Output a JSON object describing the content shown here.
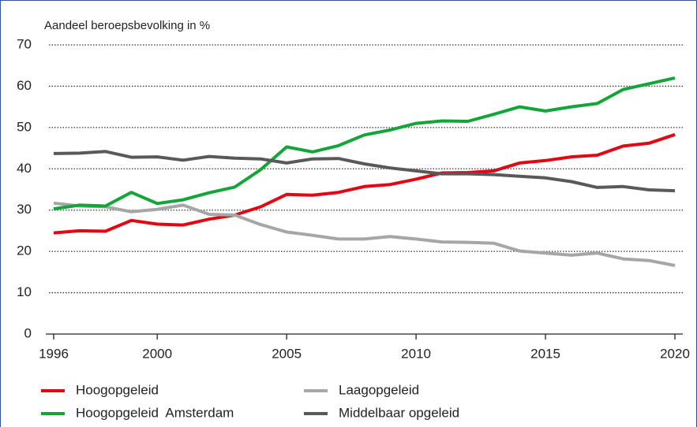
{
  "chart_data": {
    "type": "line",
    "y_label": "Aandeel beroepsbevolking in %",
    "x": [
      1996,
      1997,
      1998,
      1999,
      2000,
      2001,
      2002,
      2003,
      2004,
      2005,
      2006,
      2007,
      2008,
      2009,
      2010,
      2011,
      2012,
      2013,
      2014,
      2015,
      2016,
      2017,
      2018,
      2019,
      2020
    ],
    "series": [
      {
        "name": "Hoogopgeleid",
        "color": "#e30613",
        "values": [
          24.5,
          25,
          24.9,
          27.5,
          26.6,
          26.4,
          27.8,
          28.8,
          30.8,
          33.8,
          33.6,
          34.3,
          35.7,
          36.2,
          37.5,
          39,
          39.1,
          39.5,
          41.4,
          42,
          42.9,
          43.3,
          45.5,
          46.2,
          48.3
        ]
      },
      {
        "name": "Laagopgeleid",
        "color": "#a6a6a6",
        "values": [
          31.7,
          31,
          30.8,
          29.6,
          30.2,
          31.2,
          29,
          28.8,
          26.5,
          24.7,
          23.9,
          23,
          23,
          23.6,
          23,
          22.3,
          22.2,
          22,
          20.1,
          19.6,
          19.1,
          19.6,
          18.2,
          17.8,
          16.6
        ]
      },
      {
        "name": "Hoogopgeleid  Amsterdam",
        "color": "#13a538",
        "values": [
          30.3,
          31.2,
          31,
          34.3,
          31.6,
          32.5,
          34.2,
          35.6,
          39.8,
          45.3,
          44.1,
          45.6,
          48.2,
          49.4,
          51,
          51.6,
          51.5,
          53.2,
          55,
          54,
          55,
          55.8,
          59.2,
          60.6,
          62
        ]
      },
      {
        "name": "Middelbaar opgeleid",
        "color": "#595959",
        "values": [
          43.7,
          43.8,
          44.2,
          42.8,
          42.9,
          42.1,
          43,
          42.6,
          42.4,
          41.4,
          42.4,
          42.5,
          41.2,
          40.2,
          39.5,
          38.8,
          38.8,
          38.6,
          38.2,
          37.8,
          36.9,
          35.5,
          35.7,
          34.9,
          34.7
        ]
      }
    ],
    "xlim": [
      1996,
      2020
    ],
    "xticks": [
      1996,
      2000,
      2005,
      2010,
      2015,
      2020
    ],
    "ylim": [
      0,
      70
    ],
    "yticks": [
      0,
      10,
      20,
      30,
      40,
      50,
      60,
      70
    ],
    "grid": true
  }
}
